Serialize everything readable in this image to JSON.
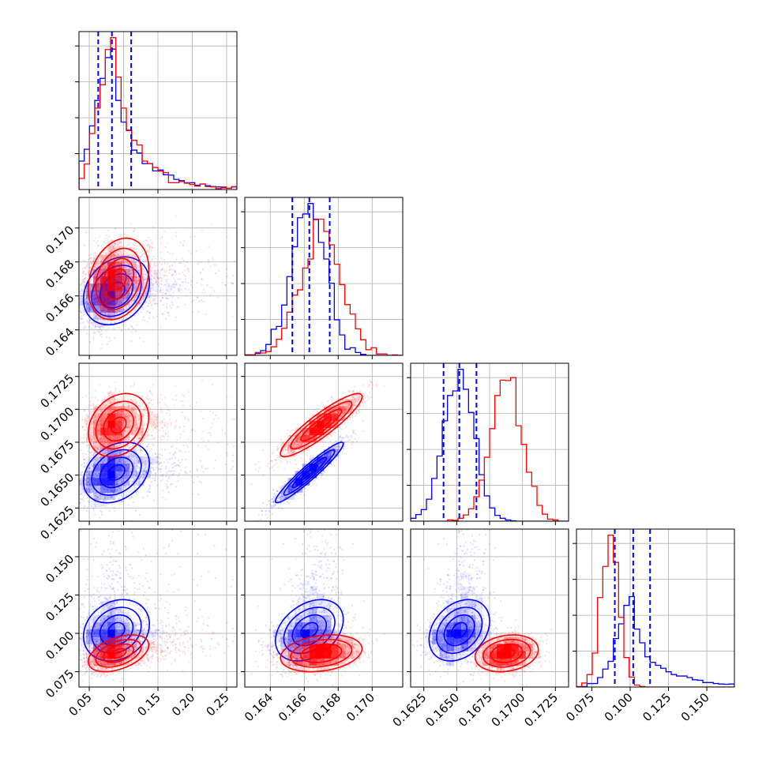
{
  "colors": {
    "blue": "#0000ff",
    "red": "#ff0000"
  },
  "chart_data": {
    "type": "corner",
    "grid": true,
    "parameters": [
      {
        "range": [
          0.035,
          0.265
        ],
        "ticks": [
          0.05,
          0.1,
          0.15,
          0.2,
          0.25
        ],
        "tick_labels": [
          "0.05",
          "0.10",
          "0.15",
          "0.20",
          "0.25"
        ]
      },
      {
        "range": [
          0.1625,
          0.1718
        ],
        "ticks": [
          0.164,
          0.166,
          0.168,
          0.17
        ],
        "tick_labels": [
          "0.164",
          "0.166",
          "0.168",
          "0.170"
        ]
      },
      {
        "range": [
          0.1615,
          0.1735
        ],
        "ticks": [
          0.1625,
          0.165,
          0.1675,
          0.17,
          0.1725
        ],
        "tick_labels": [
          "0.1625",
          "0.1650",
          "0.1675",
          "0.1700",
          "0.1725"
        ]
      },
      {
        "range": [
          0.065,
          0.168
        ],
        "ticks": [
          0.075,
          0.1,
          0.125,
          0.15
        ],
        "tick_labels": [
          "0.075",
          "0.100",
          "0.125",
          "0.150"
        ]
      }
    ],
    "series": [
      {
        "color": "blue",
        "mean": [
          0.085,
          0.1663,
          0.1652,
          0.102
        ],
        "sd": [
          0.024,
          0.001,
          0.00115,
          0.01
        ],
        "skew": [
          0.045,
          0,
          0,
          0.022
        ],
        "corr": [
          [
            1,
            0.25,
            0.3,
            0.2
          ],
          [
            0.25,
            1,
            0.95,
            0.35
          ],
          [
            0.3,
            0.95,
            1,
            0.3
          ],
          [
            0.2,
            0.35,
            0.3,
            1
          ]
        ],
        "quantiles": [
          [
            0.063,
            0.083,
            0.111
          ],
          [
            0.1653,
            0.1663,
            0.1675
          ],
          [
            0.164,
            0.1652,
            0.1665
          ],
          [
            0.09,
            0.102,
            0.113
          ]
        ]
      },
      {
        "color": "red",
        "mean": [
          0.088,
          0.167,
          0.1688,
          0.087
        ],
        "sd": [
          0.022,
          0.0012,
          0.0012,
          0.006
        ],
        "skew": [
          0.04,
          0,
          0,
          0
        ],
        "corr": [
          [
            1,
            0.25,
            0.25,
            0.45
          ],
          [
            0.25,
            1,
            0.9,
            0.25
          ],
          [
            0.25,
            0.9,
            1,
            0.2
          ],
          [
            0.45,
            0.25,
            0.2,
            1
          ]
        ]
      }
    ]
  }
}
